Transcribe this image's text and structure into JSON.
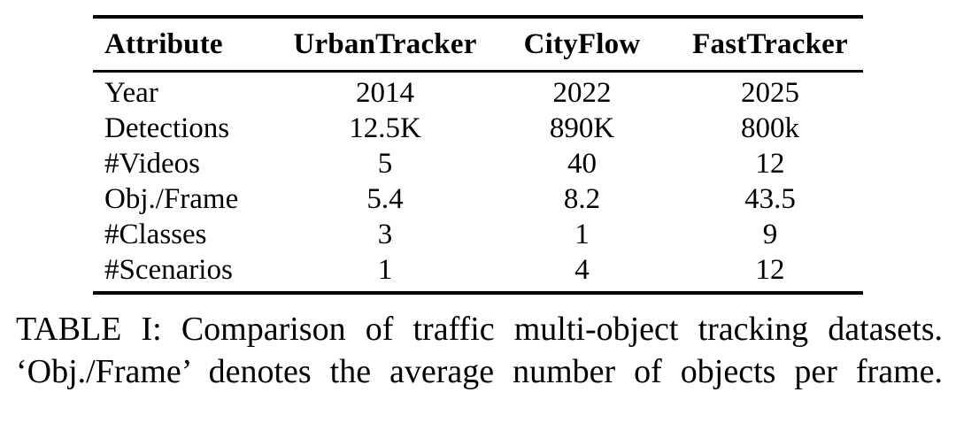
{
  "page": {
    "background": "#ffffff",
    "text_color": "#000000"
  },
  "table": {
    "columns": [
      "Attribute",
      "UrbanTracker",
      "CityFlow",
      "FastTracker"
    ],
    "rows": [
      {
        "attribute": "Year",
        "values": [
          "2014",
          "2022",
          "2025"
        ]
      },
      {
        "attribute": "Detections",
        "values": [
          "12.5K",
          "890K",
          "800k"
        ]
      },
      {
        "attribute": "#Videos",
        "values": [
          "5",
          "40",
          "12"
        ]
      },
      {
        "attribute": "Obj./Frame",
        "values": [
          "5.4",
          "8.2",
          "43.5"
        ]
      },
      {
        "attribute": "#Classes",
        "values": [
          "3",
          "1",
          "9"
        ]
      },
      {
        "attribute": "#Scenarios",
        "values": [
          "1",
          "4",
          "12"
        ]
      }
    ]
  },
  "caption": {
    "line1": "TABLE I: Comparison of traffic multi-object tracking datasets.",
    "line2": "‘Obj./Frame’ denotes the average number of objects per frame."
  }
}
